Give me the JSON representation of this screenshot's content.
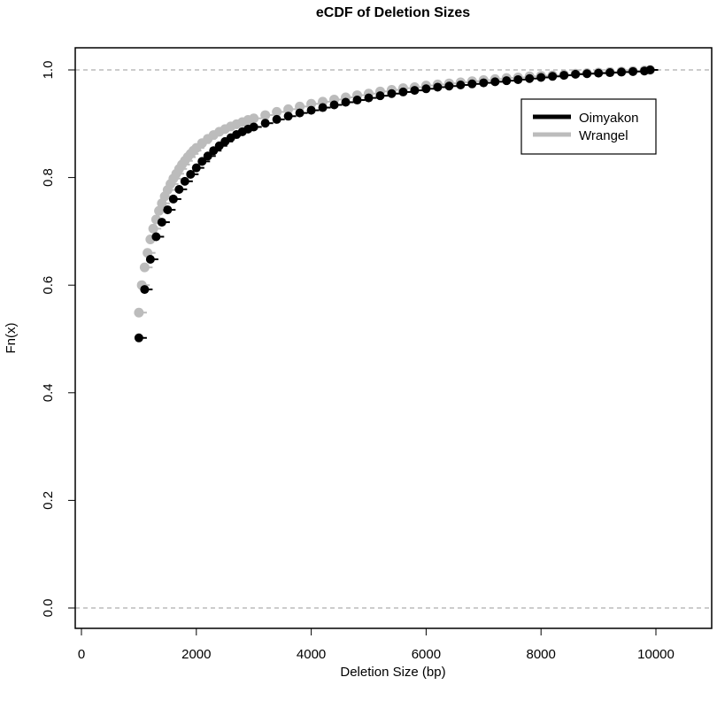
{
  "chart_data": {
    "type": "scatter",
    "title": "eCDF of Deletion Sizes",
    "xlabel": "Deletion Size (bp)",
    "ylabel": "Fn(x)",
    "xlim": [
      0,
      11000
    ],
    "ylim": [
      0,
      1
    ],
    "x_ticks": [
      0,
      2000,
      4000,
      6000,
      8000,
      10000
    ],
    "y_ticks": [
      0.0,
      0.2,
      0.4,
      0.6,
      0.8,
      1.0
    ],
    "x_tick_labels": [
      "0",
      "2000",
      "4000",
      "6000",
      "8000",
      "10000"
    ],
    "y_tick_labels": [
      "0.0",
      "0.2",
      "0.4",
      "0.6",
      "0.8",
      "1.0"
    ],
    "grid": false,
    "reference_lines": [
      0,
      1
    ],
    "legend_position": "top-right",
    "series": [
      {
        "name": "Wrangel",
        "color": "#bcbcbc",
        "x": [
          1000,
          1050,
          1100,
          1150,
          1200,
          1250,
          1300,
          1350,
          1400,
          1450,
          1500,
          1550,
          1600,
          1650,
          1700,
          1750,
          1800,
          1850,
          1900,
          1950,
          2000,
          2100,
          2200,
          2300,
          2400,
          2500,
          2600,
          2700,
          2800,
          2900,
          3000,
          3200,
          3400,
          3600,
          3800,
          4000,
          4200,
          4400,
          4600,
          4800,
          5000,
          5200,
          5400,
          5600,
          5800,
          6000,
          6200,
          6400,
          6600,
          6800,
          7000,
          7200,
          7400,
          7600,
          7800,
          8000,
          8200,
          8400,
          8600,
          8800,
          9000,
          9200,
          9400,
          9600,
          9800,
          9900
        ],
        "y": [
          0.549,
          0.6,
          0.633,
          0.66,
          0.685,
          0.705,
          0.722,
          0.738,
          0.752,
          0.765,
          0.777,
          0.788,
          0.798,
          0.807,
          0.816,
          0.824,
          0.831,
          0.838,
          0.844,
          0.85,
          0.855,
          0.864,
          0.872,
          0.879,
          0.885,
          0.89,
          0.895,
          0.899,
          0.903,
          0.907,
          0.91,
          0.916,
          0.922,
          0.927,
          0.932,
          0.937,
          0.941,
          0.945,
          0.949,
          0.953,
          0.956,
          0.96,
          0.963,
          0.966,
          0.968,
          0.971,
          0.973,
          0.975,
          0.977,
          0.979,
          0.981,
          0.983,
          0.985,
          0.986,
          0.988,
          0.989,
          0.99,
          0.991,
          0.993,
          0.994,
          0.995,
          0.996,
          0.997,
          0.998,
          0.999,
          1.0
        ]
      },
      {
        "name": "Oimyakon",
        "color": "#000000",
        "x": [
          1000,
          1100,
          1200,
          1300,
          1400,
          1500,
          1600,
          1700,
          1800,
          1900,
          2000,
          2100,
          2200,
          2300,
          2400,
          2500,
          2600,
          2700,
          2800,
          2900,
          3000,
          3200,
          3400,
          3600,
          3800,
          4000,
          4200,
          4400,
          4600,
          4800,
          5000,
          5200,
          5400,
          5600,
          5800,
          6000,
          6200,
          6400,
          6600,
          6800,
          7000,
          7200,
          7400,
          7600,
          7800,
          8000,
          8200,
          8400,
          8600,
          8800,
          9000,
          9200,
          9400,
          9600,
          9800,
          9900
        ],
        "y": [
          0.502,
          0.592,
          0.648,
          0.69,
          0.717,
          0.74,
          0.76,
          0.778,
          0.793,
          0.806,
          0.818,
          0.83,
          0.84,
          0.85,
          0.859,
          0.867,
          0.874,
          0.88,
          0.885,
          0.89,
          0.894,
          0.901,
          0.908,
          0.914,
          0.92,
          0.925,
          0.93,
          0.935,
          0.94,
          0.944,
          0.948,
          0.952,
          0.956,
          0.959,
          0.962,
          0.965,
          0.968,
          0.97,
          0.972,
          0.974,
          0.976,
          0.978,
          0.98,
          0.982,
          0.984,
          0.986,
          0.988,
          0.99,
          0.992,
          0.993,
          0.994,
          0.995,
          0.996,
          0.997,
          0.998,
          1.0
        ]
      }
    ]
  }
}
